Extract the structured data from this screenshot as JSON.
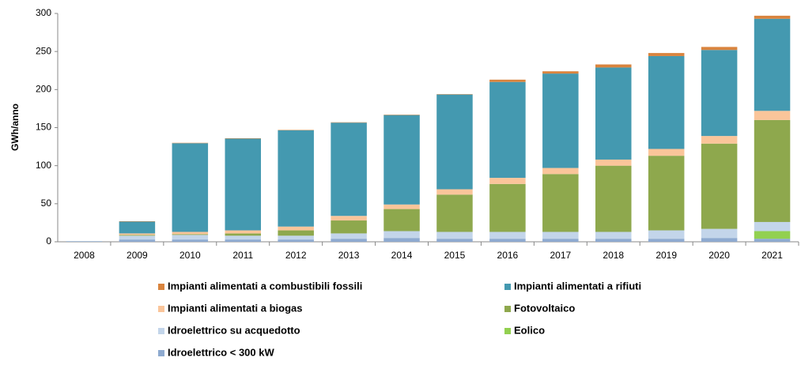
{
  "chart_data": {
    "type": "stacked_bar",
    "y_label": "GWh/anno",
    "categories": [
      "2008",
      "2009",
      "2010",
      "2011",
      "2012",
      "2013",
      "2014",
      "2015",
      "2016",
      "2017",
      "2018",
      "2019",
      "2020",
      "2021"
    ],
    "series": [
      {
        "name": "Impianti alimentati a combustibili fossili",
        "color": "#d9843e",
        "values": [
          0,
          0.5,
          0.5,
          0.5,
          0.5,
          0.5,
          0.5,
          0.5,
          3,
          3,
          4,
          4,
          4,
          4
        ]
      },
      {
        "name": "Impianti alimentati a rifiuti",
        "color": "#4499b0",
        "values": [
          0,
          15.5,
          116.5,
          120.5,
          126.5,
          122.5,
          117.5,
          124.5,
          126,
          124,
          121,
          122,
          113,
          121
        ]
      },
      {
        "name": "Impianti alimentati a biogas",
        "color": "#fac59a",
        "values": [
          0,
          2,
          3,
          4,
          5,
          6,
          6,
          7,
          8,
          8,
          8,
          9,
          10,
          12
        ]
      },
      {
        "name": "Fotovoltaico",
        "color": "#8ea84d",
        "values": [
          0,
          1,
          1,
          3,
          7,
          17,
          29,
          49,
          63,
          76,
          87,
          98,
          112,
          134
        ]
      },
      {
        "name": "Idroelettrico su acquedotto",
        "color": "#c3d5ea",
        "values": [
          0.5,
          5,
          6,
          5,
          5,
          7,
          9,
          9,
          9,
          9,
          9,
          11,
          12,
          12
        ]
      },
      {
        "name": "Eolico",
        "color": "#92d050",
        "values": [
          0,
          0,
          0,
          0,
          0,
          0,
          0,
          0,
          0,
          0,
          0,
          0,
          0,
          10
        ]
      },
      {
        "name": "Idroelettrico < 300 kW",
        "color": "#8eaad0",
        "values": [
          0.5,
          3,
          3,
          3,
          3,
          4,
          5,
          4,
          4,
          4,
          4,
          4,
          5,
          4
        ]
      }
    ],
    "ylim": [
      0,
      300
    ],
    "yticks": [
      0,
      50,
      100,
      150,
      200,
      250,
      300
    ],
    "grid": false
  }
}
